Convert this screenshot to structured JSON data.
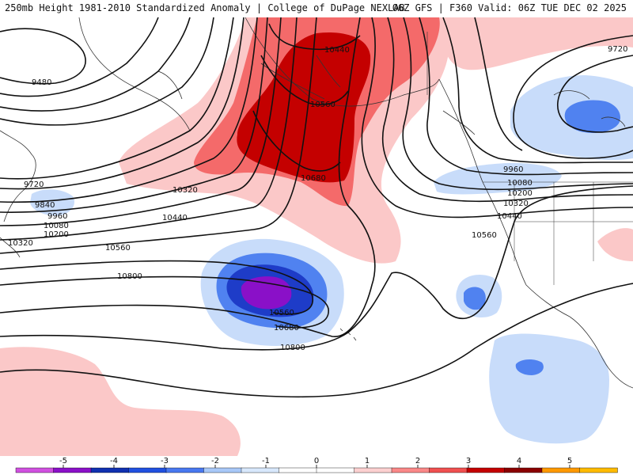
{
  "header": {
    "left": "250mb Height 1981-2010 Standardized Anomaly | College of DuPage NEXLAB",
    "right": "06Z GFS | F360 Valid: 06Z TUE DEC 02 2025"
  },
  "contour_labels": {
    "h9480": "9480",
    "h9720_w": "9720",
    "h9840_w": "9840",
    "h9960_w": "9960",
    "h10080_w": "10080",
    "h10200_w": "10200",
    "h10320_w": "10320",
    "h10320_mid": "10320",
    "h10440_mid": "10440",
    "h10560_w": "10560",
    "h10800_w": "10800",
    "h10440_ridge": "10440",
    "h10560_ridge": "10560",
    "h10680_ridge": "10680",
    "h10560_low": "10560",
    "h10680_low": "10680",
    "h10800_low": "10800",
    "h9720_e": "9720",
    "h9960_e": "9960",
    "h10080_e": "10080",
    "h10200_e": "10200",
    "h10320_e": "10320",
    "h10440_e": "10440",
    "h10560_e": "10560"
  },
  "legend": {
    "ticks": [
      "-5",
      "-4",
      "-3",
      "-2",
      "-1",
      "0",
      "1",
      "2",
      "3",
      "4",
      "5"
    ],
    "colors": [
      "#d050e0",
      "#8a10c8",
      "#1030b0",
      "#2050e0",
      "#4878f0",
      "#a8c8f8",
      "#d8e8fc",
      "#ffffff",
      "#ffffff",
      "#fcd0d0",
      "#fa8888",
      "#f05050",
      "#c40000",
      "#8a0000",
      "#ff9900",
      "#ffbb00"
    ]
  },
  "colors": {
    "red_dark": "#c40000",
    "red_mid": "#f46a6a",
    "red_light": "#fbc8c8",
    "blue_light": "#c8dcfa",
    "blue_mid": "#5082f0",
    "blue_dark": "#1e3cc8",
    "purple": "#8a10c8"
  }
}
